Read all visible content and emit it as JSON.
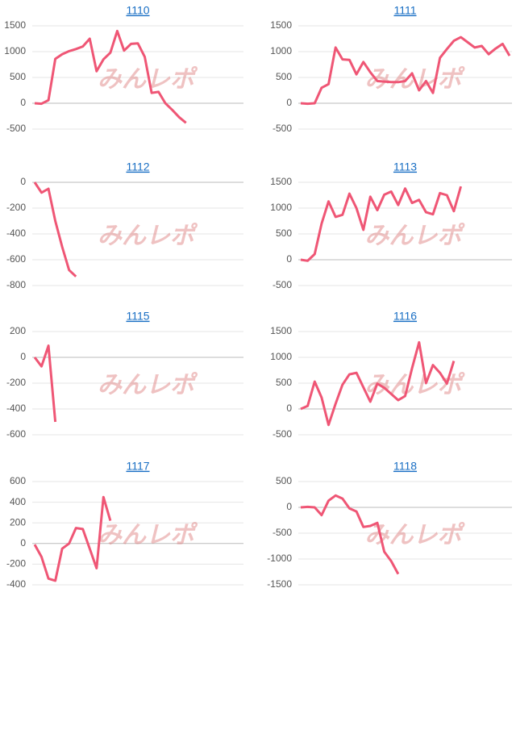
{
  "watermark": "みんレポ",
  "chart_data": [
    {
      "type": "line",
      "title": "1110",
      "color": "#ef5675",
      "grid": true,
      "ylim": [
        -500,
        1500
      ],
      "yticks": [
        -500,
        0,
        500,
        1000,
        1500
      ],
      "values": [
        0,
        -10,
        60,
        860,
        950,
        1010,
        1050,
        1100,
        1250,
        620,
        850,
        980,
        1400,
        1020,
        1150,
        1160,
        900,
        200,
        220,
        0,
        -130,
        -270,
        -380
      ]
    },
    {
      "type": "line",
      "title": "1111",
      "color": "#ef5675",
      "grid": true,
      "ylim": [
        -500,
        1500
      ],
      "yticks": [
        -500,
        0,
        500,
        1000,
        1500
      ],
      "values": [
        0,
        -10,
        0,
        300,
        370,
        1080,
        850,
        840,
        560,
        800,
        600,
        430,
        420,
        410,
        410,
        430,
        580,
        250,
        430,
        200,
        880,
        1050,
        1210,
        1280,
        1180,
        1080,
        1110,
        950,
        1060,
        1150,
        920
      ]
    },
    {
      "type": "line",
      "title": "1112",
      "color": "#ef5675",
      "grid": true,
      "ylim": [
        -800,
        0
      ],
      "yticks": [
        -800,
        -600,
        -400,
        -200,
        0
      ],
      "values": [
        0,
        -80,
        -50,
        -300,
        -500,
        -680,
        -730
      ]
    },
    {
      "type": "line",
      "title": "1113",
      "color": "#ef5675",
      "grid": true,
      "ylim": [
        -500,
        1500
      ],
      "yticks": [
        -500,
        0,
        500,
        1000,
        1500
      ],
      "values": [
        0,
        -20,
        110,
        700,
        1130,
        830,
        870,
        1280,
        1000,
        580,
        1220,
        960,
        1260,
        1320,
        1060,
        1380,
        1100,
        1160,
        920,
        880,
        1290,
        1250,
        940,
        1420
      ]
    },
    {
      "type": "line",
      "title": "1115",
      "color": "#ef5675",
      "grid": true,
      "ylim": [
        -600,
        200
      ],
      "yticks": [
        -600,
        -400,
        -200,
        0,
        200
      ],
      "values": [
        0,
        -70,
        90,
        -500
      ]
    },
    {
      "type": "line",
      "title": "1116",
      "color": "#ef5675",
      "grid": true,
      "ylim": [
        -500,
        1500
      ],
      "yticks": [
        -500,
        0,
        500,
        1000,
        1500
      ],
      "values": [
        0,
        60,
        530,
        220,
        -310,
        100,
        470,
        670,
        700,
        420,
        140,
        490,
        410,
        290,
        170,
        250,
        790,
        1290,
        500,
        850,
        700,
        490,
        930
      ]
    },
    {
      "type": "line",
      "title": "1117",
      "color": "#ef5675",
      "grid": true,
      "ylim": [
        -400,
        600
      ],
      "yticks": [
        -400,
        -200,
        0,
        200,
        400,
        600
      ],
      "values": [
        -10,
        -130,
        -340,
        -360,
        -50,
        0,
        150,
        140,
        -50,
        -240,
        450,
        220
      ]
    },
    {
      "type": "line",
      "title": "1118",
      "color": "#ef5675",
      "grid": true,
      "ylim": [
        -1500,
        500
      ],
      "yticks": [
        -1500,
        -1000,
        -500,
        0,
        500
      ],
      "values": [
        0,
        10,
        0,
        -150,
        130,
        230,
        170,
        -20,
        -80,
        -380,
        -360,
        -300,
        -860,
        -1040,
        -1290
      ]
    }
  ]
}
